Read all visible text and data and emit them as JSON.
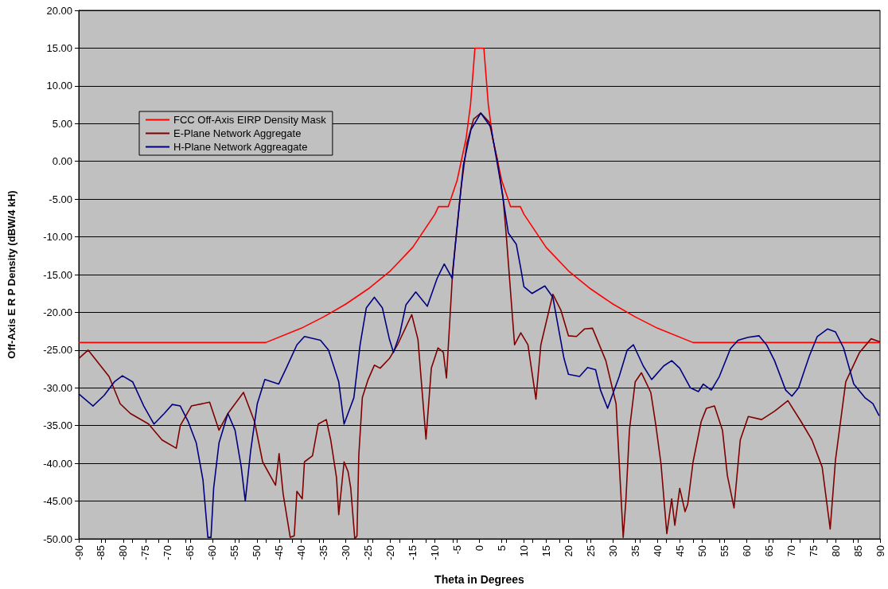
{
  "chart_data": {
    "type": "line",
    "xlabel": "Theta in Degrees",
    "ylabel": "Off-Axis E R P Density (dBW/4 kH)",
    "xlim": [
      -90,
      90
    ],
    "xticks": [
      -90,
      -85,
      -80,
      -75,
      -70,
      -65,
      -60,
      -55,
      -50,
      -45,
      -40,
      -35,
      -30,
      -25,
      -20,
      -15,
      -10,
      -5,
      0,
      5,
      10,
      15,
      20,
      25,
      30,
      35,
      40,
      45,
      50,
      55,
      60,
      65,
      70,
      75,
      80,
      85,
      90
    ],
    "ylim": [
      -50,
      20
    ],
    "yticks": [
      {
        "value": -50,
        "label": "-50.00"
      },
      {
        "value": -45,
        "label": "-45.00"
      },
      {
        "value": -40,
        "label": "-40.00"
      },
      {
        "value": -35,
        "label": "-35.00"
      },
      {
        "value": -30,
        "label": "-30.00"
      },
      {
        "value": -25,
        "label": "-25.00"
      },
      {
        "value": -20,
        "label": "-20.00"
      },
      {
        "value": -15,
        "label": "-15.00"
      },
      {
        "value": -10,
        "label": "-10.00"
      },
      {
        "value": -5,
        "label": "-5.00"
      },
      {
        "value": 0,
        "label": "0.00"
      },
      {
        "value": 5,
        "label": "5.00"
      },
      {
        "value": 10,
        "label": "10.00"
      },
      {
        "value": 15,
        "label": "15.00"
      },
      {
        "value": 20,
        "label": "20.00"
      }
    ],
    "grid": "y",
    "legend": "top left",
    "marker": "none",
    "line_style": "solid",
    "series": [
      {
        "name": "FCC Off-Axis EIRP Density Mask",
        "color": "#ff0000",
        "x": [
          -90,
          -48,
          -40,
          -35,
          -30,
          -25,
          -20,
          -15,
          -10,
          -9.2,
          -7,
          -5,
          -3,
          -2,
          -1,
          1,
          2,
          3,
          5,
          7,
          9.2,
          10,
          15,
          20,
          25,
          30,
          35,
          40,
          48,
          90
        ],
        "values": [
          -24,
          -24,
          -22.1,
          -20.6,
          -18.9,
          -16.9,
          -14.5,
          -11.4,
          -7,
          -6,
          -6,
          -2.5,
          3,
          7.5,
          15,
          15,
          7.5,
          3,
          -2.5,
          -6,
          -6,
          -7,
          -11.4,
          -14.5,
          -16.9,
          -18.9,
          -20.6,
          -22.1,
          -24,
          -24
        ]
      },
      {
        "name": "E-Plane Network Aggregate",
        "color": "#800000",
        "x": [
          -90,
          -87.9,
          -83.2,
          -80.7,
          -78.4,
          -74.3,
          -71.3,
          -68.1,
          -67.2,
          -64.7,
          -60.6,
          -58.5,
          -56.5,
          -53,
          -50.5,
          -48.7,
          -45.8,
          -45,
          -44.1,
          -42.5,
          -41.6,
          -41,
          -39.8,
          -39.3,
          -37.5,
          -36.2,
          -34.4,
          -33.4,
          -32.1,
          -31.6,
          -30.4,
          -29.5,
          -28.9,
          -28,
          -27.5,
          -27.1,
          -26.3,
          -25,
          -23.6,
          -22.3,
          -20.2,
          -18.4,
          -15.2,
          -13.8,
          -12,
          -10.8,
          -9.3,
          -8.1,
          -7.4,
          -6,
          -4.2,
          -2.8,
          -1.3,
          0.3,
          2.2,
          4,
          5.3,
          6.1,
          7,
          7.9,
          9.3,
          10.9,
          12.7,
          13.8,
          16.5,
          18.3,
          20,
          21.8,
          23.6,
          25.4,
          28.4,
          30.7,
          32.3,
          32.9,
          33.7,
          35,
          36.4,
          38.5,
          39.6,
          40.8,
          42.1,
          43.2,
          43.9,
          45,
          46.2,
          46.8,
          48,
          49.8,
          51,
          52.8,
          54.6,
          55.7,
          57.2,
          58.6,
          60.4,
          63.4,
          66.3,
          69.3,
          72.3,
          74.7,
          77,
          78.8,
          80,
          82.3,
          85.4,
          88,
          90
        ],
        "values": [
          -26.1,
          -25,
          -28.5,
          -32.1,
          -33.4,
          -34.8,
          -36.9,
          -38,
          -35,
          -32.4,
          -31.9,
          -35.6,
          -33.4,
          -30.6,
          -34.5,
          -39.8,
          -42.9,
          -38.7,
          -44,
          -49.8,
          -49.6,
          -43.7,
          -44.7,
          -39.8,
          -39,
          -34.8,
          -34.2,
          -36.9,
          -41.9,
          -46.8,
          -39.8,
          -41.1,
          -43.3,
          -50,
          -49.6,
          -39,
          -31.3,
          -28.9,
          -27,
          -27.4,
          -26.1,
          -24.3,
          -20.3,
          -23.6,
          -36.8,
          -27.4,
          -24.7,
          -25.3,
          -28.7,
          -14.5,
          -3.9,
          2.4,
          5.6,
          6.4,
          5.2,
          0.3,
          -4.7,
          -10.3,
          -17.3,
          -24.3,
          -22.7,
          -24.3,
          -31.5,
          -24.3,
          -17.6,
          -19.7,
          -23.1,
          -23.2,
          -22.2,
          -22.1,
          -26.4,
          -32.1,
          -49.8,
          -45,
          -35.6,
          -29.2,
          -28,
          -30.6,
          -34.8,
          -40.1,
          -49.3,
          -44.7,
          -48.2,
          -43.3,
          -46.4,
          -45.4,
          -39.8,
          -34.5,
          -32.7,
          -32.4,
          -35.6,
          -41.6,
          -45.9,
          -36.9,
          -33.8,
          -34.2,
          -33.1,
          -31.7,
          -34.5,
          -36.9,
          -40.5,
          -48.7,
          -39.5,
          -29.2,
          -25.3,
          -23.5,
          -23.9
        ]
      },
      {
        "name": "H-Plane Network Aggreagate",
        "color": "#000080",
        "x": [
          -90,
          -86.8,
          -84.3,
          -82,
          -80.2,
          -77.9,
          -75.4,
          -73.1,
          -70.8,
          -69,
          -67.2,
          -65.4,
          -63.6,
          -62.1,
          -61,
          -60.3,
          -59.7,
          -58.5,
          -56.5,
          -54.9,
          -53.5,
          -52.6,
          -51.4,
          -49.9,
          -48.2,
          -45.1,
          -43.4,
          -41,
          -39.3,
          -35.7,
          -33.9,
          -31.6,
          -30.4,
          -28.2,
          -26.8,
          -25.4,
          -23.6,
          -21.8,
          -20.2,
          -19.3,
          -17.9,
          -16.5,
          -14.3,
          -11.7,
          -9.5,
          -7.9,
          -6.1,
          -5.4,
          -3.6,
          -1.9,
          0.3,
          2.6,
          4.7,
          6.5,
          8.3,
          9.3,
          10,
          11.8,
          14.7,
          16.5,
          19,
          20,
          22.5,
          24.3,
          26.1,
          27.2,
          28.8,
          31.4,
          33.2,
          34.6,
          36.8,
          38.7,
          41.4,
          43.2,
          45,
          47.4,
          49.2,
          50.3,
          52.1,
          53.9,
          56.4,
          58.1,
          60.4,
          62.8,
          64.5,
          66.3,
          68.8,
          70.2,
          71.7,
          74.1,
          75.9,
          78.2,
          80,
          81.8,
          84.1,
          86.6,
          88.4,
          89.8
        ],
        "values": [
          -30.8,
          -32.4,
          -31,
          -29.2,
          -28.4,
          -29.2,
          -32.4,
          -34.8,
          -33.4,
          -32.2,
          -32.4,
          -34.5,
          -37.3,
          -42.2,
          -49.8,
          -49.8,
          -43.3,
          -37.3,
          -33.4,
          -35.6,
          -40.5,
          -45,
          -38.4,
          -32.1,
          -28.9,
          -29.5,
          -27.4,
          -24.3,
          -23.2,
          -23.7,
          -25,
          -29.2,
          -34.8,
          -31.3,
          -24.3,
          -19.4,
          -18,
          -19.4,
          -23.6,
          -25.3,
          -22.9,
          -19,
          -17.3,
          -19.2,
          -15.5,
          -13.6,
          -15.5,
          -11,
          -0.5,
          4.2,
          6.4,
          4.5,
          -2.6,
          -9.5,
          -11,
          -14.2,
          -16.6,
          -17.5,
          -16.5,
          -18,
          -26.1,
          -28.2,
          -28.5,
          -27.3,
          -27.6,
          -30.3,
          -32.7,
          -28.5,
          -25,
          -24.3,
          -27.1,
          -28.9,
          -27.1,
          -26.4,
          -27.4,
          -30,
          -30.5,
          -29.5,
          -30.3,
          -28.5,
          -24.8,
          -23.7,
          -23.3,
          -23.1,
          -24.3,
          -26.4,
          -30.3,
          -31.1,
          -30,
          -25.8,
          -23.2,
          -22.2,
          -22.6,
          -24.7,
          -29.5,
          -31.3,
          -32.1,
          -33.7
        ]
      }
    ]
  }
}
